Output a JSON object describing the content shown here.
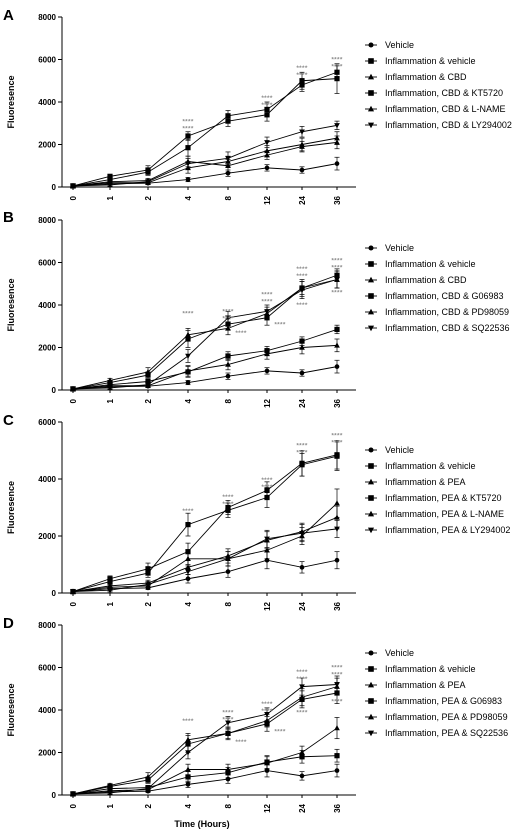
{
  "figure": {
    "x_axis_title": "Time (Hours)"
  },
  "chart_data": [
    {
      "panel": "A",
      "type": "line",
      "categories": [
        "0",
        "1",
        "2",
        "4",
        "8",
        "12",
        "24",
        "36"
      ],
      "ylabel": "Fluoresence",
      "ylim": [
        0,
        8000
      ],
      "yticks": [
        "0",
        "2000",
        "4000",
        "6000",
        "8000"
      ],
      "legend_position": "right",
      "series": [
        {
          "name": "Vehicle",
          "marker": "circle",
          "values": [
            50,
            150,
            180,
            350,
            650,
            900,
            800,
            1100
          ],
          "errors": [
            30,
            60,
            60,
            100,
            150,
            150,
            150,
            300
          ]
        },
        {
          "name": "Inflammation & vehicle",
          "marker": "square",
          "values": [
            50,
            350,
            700,
            1850,
            3350,
            3650,
            4800,
            5400
          ],
          "errors": [
            30,
            100,
            150,
            400,
            250,
            350,
            300,
            300
          ]
        },
        {
          "name": "Inflammation & CBD",
          "marker": "triangle",
          "values": [
            50,
            200,
            200,
            900,
            1200,
            1700,
            2000,
            2300
          ],
          "errors": [
            30,
            80,
            80,
            250,
            250,
            250,
            300,
            300
          ]
        },
        {
          "name": "Inflammation, CBD & KT5720",
          "marker": "square",
          "values": [
            50,
            500,
            800,
            2400,
            3100,
            3400,
            5000,
            5100
          ],
          "errors": [
            30,
            100,
            200,
            200,
            250,
            300,
            400,
            700
          ]
        },
        {
          "name": "Inflammation, CBD & L-NAME",
          "marker": "triangle",
          "values": [
            50,
            250,
            300,
            1200,
            1000,
            1500,
            1900,
            2100
          ],
          "errors": [
            30,
            80,
            100,
            250,
            300,
            200,
            250,
            300
          ]
        },
        {
          "name": "Inflammation, CBD & LY294002",
          "marker": "triangle-down",
          "values": [
            50,
            100,
            250,
            1100,
            1350,
            2100,
            2600,
            2900
          ],
          "errors": [
            30,
            60,
            100,
            250,
            300,
            250,
            250,
            200
          ]
        }
      ],
      "significance": [
        {
          "x": "4",
          "y": 3000,
          "marks": [
            "****",
            "****"
          ]
        },
        {
          "x": "12",
          "y": 4100,
          "marks": [
            "****",
            "****"
          ]
        },
        {
          "x": "24",
          "y": 5500,
          "marks": [
            "****",
            "****"
          ]
        },
        {
          "x": "36",
          "y": 5900,
          "marks": [
            "****",
            "****"
          ]
        }
      ]
    },
    {
      "panel": "B",
      "type": "line",
      "categories": [
        "0",
        "1",
        "2",
        "4",
        "8",
        "12",
        "24",
        "36"
      ],
      "ylabel": "Fluoresence",
      "ylim": [
        0,
        8000
      ],
      "yticks": [
        "0",
        "2000",
        "4000",
        "6000",
        "8000"
      ],
      "legend_position": "right",
      "series": [
        {
          "name": "Vehicle",
          "marker": "circle",
          "values": [
            50,
            150,
            180,
            350,
            650,
            900,
            800,
            1100
          ],
          "errors": [
            30,
            60,
            60,
            100,
            150,
            150,
            150,
            300
          ]
        },
        {
          "name": "Inflammation & vehicle",
          "marker": "square",
          "values": [
            50,
            350,
            700,
            2400,
            3100,
            3400,
            4800,
            5400
          ],
          "errors": [
            30,
            100,
            150,
            400,
            250,
            350,
            300,
            300
          ]
        },
        {
          "name": "Inflammation & CBD",
          "marker": "triangle",
          "values": [
            50,
            200,
            200,
            900,
            1200,
            1700,
            2000,
            2100
          ],
          "errors": [
            30,
            80,
            80,
            250,
            250,
            250,
            300,
            300
          ]
        },
        {
          "name": "Inflammation, CBD & G06983",
          "marker": "square",
          "values": [
            50,
            250,
            400,
            850,
            1600,
            1850,
            2300,
            2850
          ],
          "errors": [
            30,
            80,
            100,
            250,
            200,
            200,
            200,
            200
          ]
        },
        {
          "name": "Inflammation, CBD & PD98059",
          "marker": "triangle",
          "values": [
            50,
            450,
            850,
            2600,
            2900,
            3600,
            4800,
            5200
          ],
          "errors": [
            30,
            100,
            200,
            300,
            300,
            300,
            400,
            400
          ]
        },
        {
          "name": "Inflammation, CBD & SQ22536",
          "marker": "triangle-down",
          "values": [
            50,
            100,
            250,
            1600,
            3400,
            3700,
            4700,
            5200
          ],
          "errors": [
            30,
            60,
            100,
            300,
            300,
            300,
            400,
            400
          ]
        }
      ],
      "significance": [
        {
          "x": "4",
          "y": 3500,
          "marks": [
            "****"
          ]
        },
        {
          "x": "8",
          "y": 3600,
          "marks": [
            "****",
            "****"
          ]
        },
        {
          "x": "8",
          "y": 2600,
          "marks": [
            "****"
          ],
          "offset": "right"
        },
        {
          "x": "12",
          "y": 4400,
          "marks": [
            "****",
            "****"
          ]
        },
        {
          "x": "12",
          "y": 3000,
          "marks": [
            "****"
          ],
          "offset": "right"
        },
        {
          "x": "24",
          "y": 5600,
          "marks": [
            "****",
            "****"
          ]
        },
        {
          "x": "24",
          "y": 3900,
          "marks": [
            "****"
          ]
        },
        {
          "x": "36",
          "y": 6000,
          "marks": [
            "****",
            "****"
          ]
        },
        {
          "x": "36",
          "y": 4500,
          "marks": [
            "****"
          ]
        }
      ]
    },
    {
      "panel": "C",
      "type": "line",
      "categories": [
        "0",
        "1",
        "2",
        "4",
        "8",
        "12",
        "24",
        "36"
      ],
      "ylabel": "Fluoresence",
      "ylim": [
        0,
        6000
      ],
      "yticks": [
        "0",
        "2000",
        "4000",
        "6000"
      ],
      "legend_position": "right",
      "series": [
        {
          "name": "Vehicle",
          "marker": "circle",
          "values": [
            50,
            150,
            180,
            500,
            750,
            1150,
            900,
            1150
          ],
          "errors": [
            30,
            60,
            60,
            150,
            200,
            300,
            200,
            300
          ]
        },
        {
          "name": "Inflammation & vehicle",
          "marker": "square",
          "values": [
            50,
            400,
            700,
            2400,
            2900,
            3350,
            4500,
            4800
          ],
          "errors": [
            30,
            100,
            150,
            400,
            250,
            350,
            400,
            500
          ]
        },
        {
          "name": "Inflammation & PEA",
          "marker": "triangle",
          "values": [
            50,
            200,
            250,
            1200,
            1200,
            1500,
            2000,
            3150
          ],
          "errors": [
            30,
            80,
            80,
            250,
            250,
            300,
            300,
            500
          ]
        },
        {
          "name": "Inflammation, PEA & KT5720",
          "marker": "square",
          "values": [
            50,
            500,
            850,
            1450,
            3000,
            3600,
            4550,
            4850
          ],
          "errors": [
            30,
            100,
            200,
            300,
            250,
            300,
            450,
            500
          ]
        },
        {
          "name": "Inflammation, PEA & L-NAME",
          "marker": "triangle",
          "values": [
            50,
            250,
            350,
            900,
            1300,
            1850,
            2150,
            2650
          ],
          "errors": [
            30,
            80,
            100,
            250,
            250,
            300,
            300,
            400
          ]
        },
        {
          "name": "Inflammation, PEA & LY294002",
          "marker": "triangle-down",
          "values": [
            50,
            100,
            300,
            750,
            1200,
            1900,
            2100,
            2250
          ],
          "errors": [
            30,
            60,
            100,
            250,
            250,
            300,
            300,
            300
          ]
        }
      ],
      "significance": [
        {
          "x": "4",
          "y": 2800,
          "marks": [
            "****"
          ]
        },
        {
          "x": "8",
          "y": 3300,
          "marks": [
            "****",
            "****"
          ]
        },
        {
          "x": "12",
          "y": 3900,
          "marks": [
            "****",
            "****"
          ]
        },
        {
          "x": "24",
          "y": 5100,
          "marks": [
            "****",
            "****"
          ]
        },
        {
          "x": "36",
          "y": 5450,
          "marks": [
            "****",
            "****"
          ]
        }
      ]
    },
    {
      "panel": "D",
      "type": "line",
      "categories": [
        "0",
        "1",
        "2",
        "4",
        "8",
        "12",
        "24",
        "36"
      ],
      "ylabel": "Fluoresence",
      "ylim": [
        0,
        8000
      ],
      "yticks": [
        "0",
        "2000",
        "4000",
        "6000",
        "8000"
      ],
      "xlabel": "Time (Hours)",
      "legend_position": "right",
      "series": [
        {
          "name": "Vehicle",
          "marker": "circle",
          "values": [
            50,
            150,
            180,
            500,
            750,
            1150,
            900,
            1150
          ],
          "errors": [
            30,
            60,
            60,
            150,
            200,
            300,
            200,
            300
          ]
        },
        {
          "name": "Inflammation & vehicle",
          "marker": "square",
          "values": [
            50,
            400,
            700,
            2400,
            2900,
            3350,
            4500,
            4800
          ],
          "errors": [
            30,
            100,
            150,
            400,
            250,
            350,
            400,
            500
          ]
        },
        {
          "name": "Inflammation & PEA",
          "marker": "triangle",
          "values": [
            50,
            200,
            250,
            1200,
            1200,
            1500,
            2000,
            3150
          ],
          "errors": [
            30,
            80,
            80,
            250,
            250,
            300,
            300,
            500
          ]
        },
        {
          "name": "Inflammation, PEA & G06983",
          "marker": "square",
          "values": [
            50,
            300,
            350,
            850,
            1050,
            1550,
            1800,
            1850
          ],
          "errors": [
            30,
            80,
            100,
            250,
            250,
            300,
            300,
            300
          ]
        },
        {
          "name": "Inflammation, PEA & PD98059",
          "marker": "triangle",
          "values": [
            50,
            450,
            850,
            2600,
            2900,
            3500,
            4600,
            5100
          ],
          "errors": [
            30,
            100,
            200,
            300,
            300,
            300,
            400,
            400
          ]
        },
        {
          "name": "Inflammation, PEA & SQ22536",
          "marker": "triangle-down",
          "values": [
            50,
            100,
            300,
            2000,
            3400,
            3800,
            5100,
            5200
          ],
          "errors": [
            30,
            60,
            100,
            300,
            300,
            300,
            400,
            400
          ]
        }
      ],
      "significance": [
        {
          "x": "4",
          "y": 3400,
          "marks": [
            "****"
          ]
        },
        {
          "x": "8",
          "y": 3800,
          "marks": [
            "****",
            "****"
          ]
        },
        {
          "x": "8",
          "y": 2400,
          "marks": [
            "****"
          ],
          "offset": "right"
        },
        {
          "x": "12",
          "y": 4200,
          "marks": [
            "****",
            "****"
          ]
        },
        {
          "x": "12",
          "y": 2900,
          "marks": [
            "****"
          ],
          "offset": "right"
        },
        {
          "x": "24",
          "y": 5700,
          "marks": [
            "****",
            "****"
          ]
        },
        {
          "x": "24",
          "y": 3800,
          "marks": [
            "****"
          ]
        },
        {
          "x": "36",
          "y": 5900,
          "marks": [
            "****",
            "****"
          ]
        },
        {
          "x": "36",
          "y": 4300,
          "marks": [
            "****"
          ]
        }
      ]
    }
  ]
}
